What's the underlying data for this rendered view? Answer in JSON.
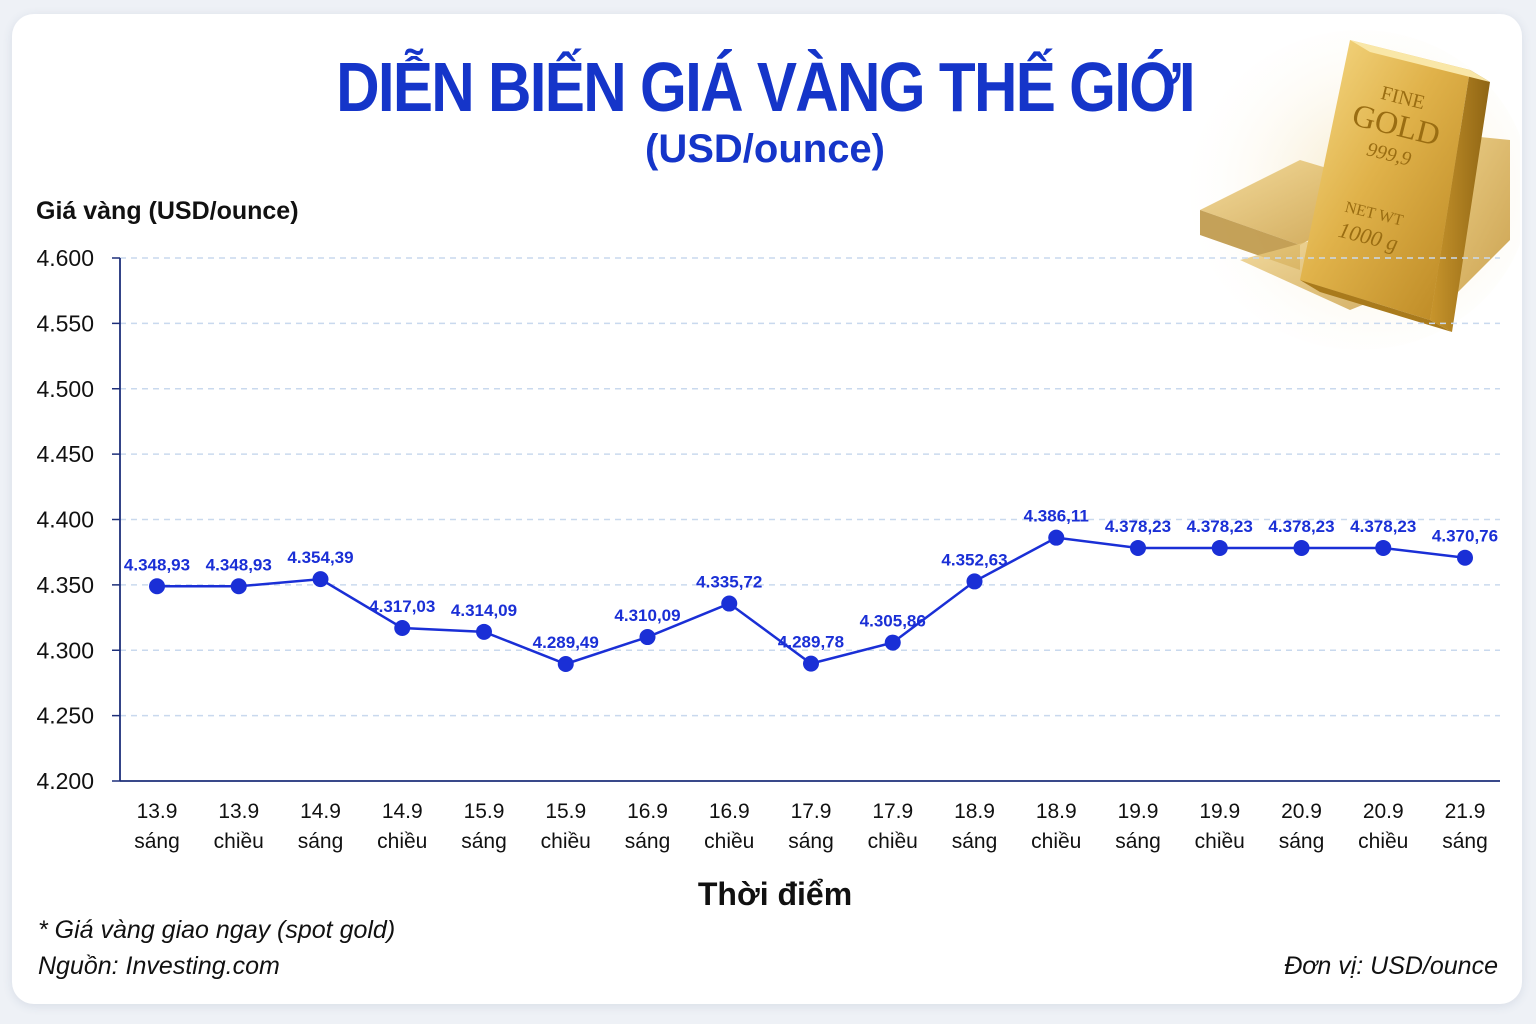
{
  "header": {
    "title": "DIỄN BIẾN GIÁ VÀNG THẾ GIỚI",
    "subtitle": "(USD/ounce)"
  },
  "footer": {
    "note": "* Giá vàng giao ngay (spot gold)",
    "source": "Nguồn: Investing.com",
    "unit": "Đơn vị: USD/ounce"
  },
  "gold_bar": {
    "text_fine": "FINE",
    "text_gold": "GOLD",
    "text_purity": "999,9",
    "text_netwt": "NET WT",
    "text_weight": "1000 g"
  },
  "colors": {
    "accent": "#1535c9",
    "line": "#1a2fd6",
    "grid": "#c9d9ee",
    "axis": "#1d2f7a"
  },
  "chart_data": {
    "type": "line",
    "ylabel": "Giá vàng (USD/ounce)",
    "xlabel": "Thời điểm",
    "ylim": [
      4200,
      4600
    ],
    "yticks": [
      4200,
      4250,
      4300,
      4350,
      4400,
      4450,
      4500,
      4550,
      4600
    ],
    "ytick_labels": [
      "4.200",
      "4.250",
      "4.300",
      "4.350",
      "4.400",
      "4.450",
      "4.500",
      "4.550",
      "4.600"
    ],
    "grid": true,
    "categories": [
      [
        "13.9",
        "sáng"
      ],
      [
        "13.9",
        "chiều"
      ],
      [
        "14.9",
        "sáng"
      ],
      [
        "14.9",
        "chiều"
      ],
      [
        "15.9",
        "sáng"
      ],
      [
        "15.9",
        "chiều"
      ],
      [
        "16.9",
        "sáng"
      ],
      [
        "16.9",
        "chiều"
      ],
      [
        "17.9",
        "sáng"
      ],
      [
        "17.9",
        "chiều"
      ],
      [
        "18.9",
        "sáng"
      ],
      [
        "18.9",
        "chiều"
      ],
      [
        "19.9",
        "sáng"
      ],
      [
        "19.9",
        "chiều"
      ],
      [
        "20.9",
        "sáng"
      ],
      [
        "20.9",
        "chiều"
      ],
      [
        "21.9",
        "sáng"
      ]
    ],
    "series": [
      {
        "values": [
          4348.93,
          4348.93,
          4354.39,
          4317.03,
          4314.09,
          4289.49,
          4310.09,
          4335.72,
          4289.78,
          4305.86,
          4352.63,
          4386.11,
          4378.23,
          4378.23,
          4378.23,
          4378.23,
          4370.76
        ],
        "labels": [
          "4.348,93",
          "4.348,93",
          "4.354,39",
          "4.317,03",
          "4.314,09",
          "4.289,49",
          "4.310,09",
          "4.335,72",
          "4.289,78",
          "4.305,86",
          "4.352,63",
          "4.386,11",
          "4.378,23",
          "4.378,23",
          "4.378,23",
          "4.378,23",
          "4.370,76"
        ]
      }
    ]
  }
}
